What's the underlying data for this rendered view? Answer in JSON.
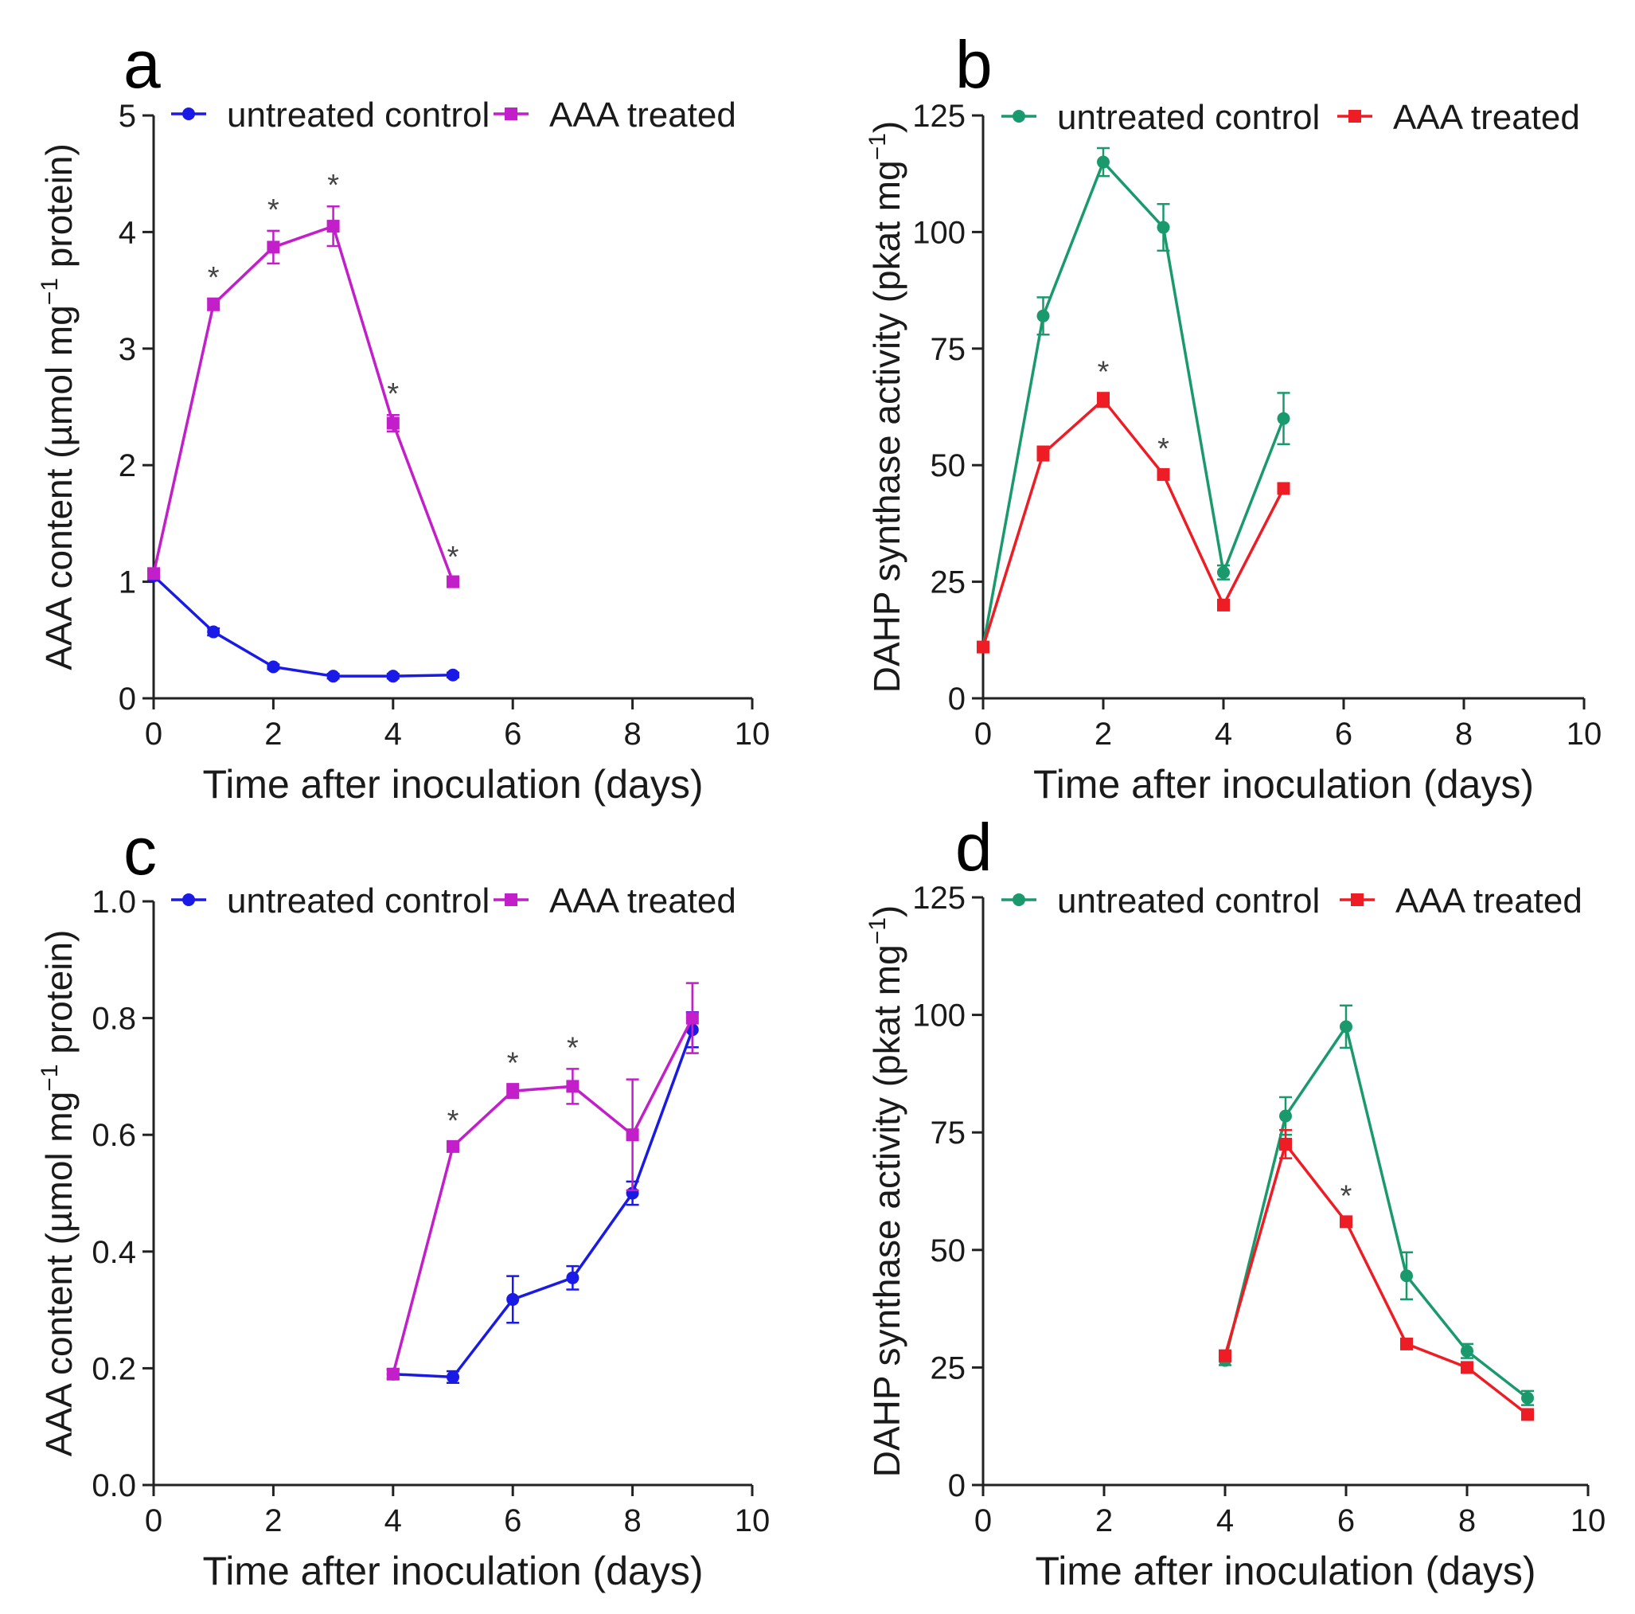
{
  "figure": {
    "x_label": "Time after inoculation (days)",
    "x_ticks": [
      "0",
      "2",
      "4",
      "6",
      "8",
      "10"
    ],
    "legend_control": "untreated control",
    "legend_treated": "AAA treated",
    "ylabel_aaa_pre": "AAA content (µmol mg",
    "ylabel_aaa_post": " protein)",
    "ylabel_dahp_pre": "DAHP synthase activity (pkat mg",
    "ylabel_dahp_post": ")",
    "superscript": "−1",
    "asterisk": "*"
  },
  "chart_data": [
    {
      "panel": "a",
      "type": "line",
      "xlabel": "Time after inoculation (days)",
      "ylabel": "AAA content (µmol mg−1 protein)",
      "xlim": [
        0,
        10
      ],
      "ylim": [
        0,
        5
      ],
      "y_ticks": [
        "0",
        "1",
        "2",
        "3",
        "4",
        "5"
      ],
      "colors": {
        "control": "#1a1ae6",
        "treated": "#c21ec9"
      },
      "series": [
        {
          "name": "untreated control",
          "marker": "circle",
          "x": [
            0,
            1,
            2,
            3,
            4,
            5
          ],
          "y": [
            1.05,
            0.57,
            0.27,
            0.19,
            0.19,
            0.2
          ],
          "err": [
            0.04,
            0.03,
            0.02,
            0.02,
            0.02,
            0.02
          ]
        },
        {
          "name": "AAA treated",
          "marker": "square",
          "x": [
            0,
            1,
            2,
            3,
            4,
            5
          ],
          "y": [
            1.07,
            3.38,
            3.87,
            4.05,
            2.36,
            1.0
          ],
          "err": [
            0.03,
            0.05,
            0.14,
            0.17,
            0.07,
            0.03
          ]
        }
      ],
      "significant_x": [
        1,
        2,
        3,
        4,
        5
      ]
    },
    {
      "panel": "b",
      "type": "line",
      "xlabel": "Time after inoculation (days)",
      "ylabel": "DAHP synthase activity (pkat mg−1)",
      "xlim": [
        0,
        10
      ],
      "ylim": [
        0,
        125
      ],
      "y_ticks": [
        "0",
        "25",
        "50",
        "75",
        "100",
        "125"
      ],
      "colors": {
        "control": "#1a9a6c",
        "treated": "#ee1c24"
      },
      "series": [
        {
          "name": "untreated control",
          "marker": "circle",
          "x": [
            0,
            1,
            2,
            3,
            4,
            5
          ],
          "y": [
            11,
            82,
            115,
            101,
            27,
            60
          ],
          "err": [
            1,
            4,
            3,
            5,
            1.5,
            5.5
          ]
        },
        {
          "name": "AAA treated",
          "marker": "square",
          "x": [
            0,
            1,
            2,
            3,
            4,
            5
          ],
          "y": [
            11,
            52.5,
            64,
            48,
            20,
            45
          ],
          "err": [
            1,
            1.5,
            1.5,
            1,
            1,
            1
          ]
        }
      ],
      "significant_x": [
        2,
        3
      ]
    },
    {
      "panel": "c",
      "type": "line",
      "xlabel": "Time after inoculation (days)",
      "ylabel": "AAA content (µmol mg−1 protein)",
      "xlim": [
        0,
        10
      ],
      "ylim": [
        0,
        1.0
      ],
      "y_ticks": [
        "0.0",
        "0.2",
        "0.4",
        "0.6",
        "0.8",
        "1.0"
      ],
      "colors": {
        "control": "#1a1ae6",
        "treated": "#c21ec9"
      },
      "series": [
        {
          "name": "untreated control",
          "marker": "circle",
          "x": [
            4,
            5,
            6,
            7,
            8,
            9
          ],
          "y": [
            0.19,
            0.185,
            0.318,
            0.355,
            0.5,
            0.78
          ],
          "err": [
            0.008,
            0.01,
            0.04,
            0.02,
            0.02,
            0.03
          ]
        },
        {
          "name": "AAA treated",
          "marker": "square",
          "x": [
            4,
            5,
            6,
            7,
            8,
            9
          ],
          "y": [
            0.19,
            0.58,
            0.675,
            0.683,
            0.6,
            0.8
          ],
          "err": [
            0.008,
            0.008,
            0.012,
            0.03,
            0.095,
            0.06
          ]
        }
      ],
      "significant_x": [
        5,
        6,
        7
      ]
    },
    {
      "panel": "d",
      "type": "line",
      "xlabel": "Time after inoculation (days)",
      "ylabel": "DAHP synthase activity (pkat mg−1)",
      "xlim": [
        0,
        10
      ],
      "ylim": [
        0,
        125
      ],
      "y_ticks": [
        "0",
        "25",
        "50",
        "75",
        "100",
        "125"
      ],
      "colors": {
        "control": "#1a9a6c",
        "treated": "#ee1c24"
      },
      "series": [
        {
          "name": "untreated control",
          "marker": "circle",
          "x": [
            4,
            5,
            6,
            7,
            8,
            9
          ],
          "y": [
            26.5,
            78.5,
            97.5,
            44.5,
            28.5,
            18.5
          ],
          "err": [
            1,
            4,
            4.5,
            5,
            1.5,
            1.5
          ]
        },
        {
          "name": "AAA treated",
          "marker": "square",
          "x": [
            4,
            5,
            6,
            7,
            8,
            9
          ],
          "y": [
            27.5,
            72.5,
            56,
            30,
            25,
            15
          ],
          "err": [
            1,
            3,
            1,
            1,
            1,
            0.5
          ]
        }
      ],
      "significant_x": [
        6
      ]
    }
  ]
}
